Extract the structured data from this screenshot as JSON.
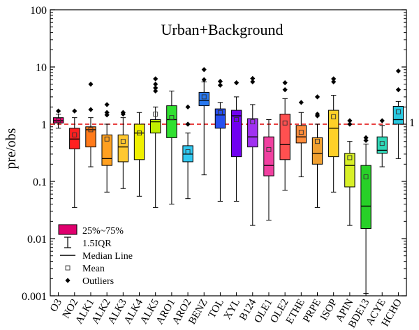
{
  "chart_data": {
    "type": "box",
    "title": "Urban+Background",
    "xlabel": "",
    "ylabel": "pre/obs",
    "y_scale": "log",
    "ylim": [
      0.001,
      100
    ],
    "y_ticks": [
      {
        "value": 0.001,
        "label": "0.001"
      },
      {
        "value": 0.01,
        "label": "0.01"
      },
      {
        "value": 0.1,
        "label": "0.1"
      },
      {
        "value": 1,
        "label": "1"
      },
      {
        "value": 10,
        "label": "10"
      },
      {
        "value": 100,
        "label": "100"
      }
    ],
    "reference_line": {
      "value": 1,
      "label": "1",
      "color": "#e00000",
      "style": "dashed"
    },
    "legend": {
      "placement": "bottom-left",
      "items": [
        {
          "kind": "box",
          "label": "25%~75%"
        },
        {
          "kind": "whisker",
          "label": "1.5IQR"
        },
        {
          "kind": "median",
          "label": "Median Line"
        },
        {
          "kind": "mean",
          "label": "Mean"
        },
        {
          "kind": "outlier",
          "label": "Outliers"
        }
      ]
    },
    "categories": [
      "O3",
      "NO2",
      "ALK1",
      "ALK2",
      "ALK3",
      "ALK4",
      "ALK5",
      "ARO1",
      "ARO2",
      "BENZ",
      "TOL",
      "XYL",
      "B124",
      "OLE1",
      "OLE2",
      "ETHE",
      "PRPE",
      "ISOP",
      "APIN",
      "BDE13",
      "ACYE",
      "HCHO"
    ],
    "boxes": [
      {
        "category": "O3",
        "color": "#e0006e",
        "q1": 1.05,
        "median": 1.15,
        "q3": 1.3,
        "whisker_low": 0.85,
        "whisker_high": 1.5,
        "mean": 1.16,
        "outliers": [
          1.7
        ]
      },
      {
        "category": "NO2",
        "color": "#ff2020",
        "q1": 0.37,
        "median": 0.55,
        "q3": 0.85,
        "whisker_low": 0.035,
        "whisker_high": 1.3,
        "mean": 0.65,
        "outliers": [
          1.7
        ]
      },
      {
        "category": "ALK1",
        "color": "#ff7a1a",
        "q1": 0.4,
        "median": 0.8,
        "q3": 0.9,
        "whisker_low": 0.18,
        "whisker_high": 1.3,
        "mean": 0.8,
        "outliers": [
          1.8,
          5.0
        ]
      },
      {
        "category": "ALK2",
        "color": "#ffa020",
        "q1": 0.19,
        "median": 0.25,
        "q3": 0.65,
        "whisker_low": 0.065,
        "whisker_high": 1.0,
        "mean": 0.55,
        "outliers": [
          1.45,
          1.6,
          2.2
        ]
      },
      {
        "category": "ALK3",
        "color": "#ffc830",
        "q1": 0.22,
        "median": 0.4,
        "q3": 0.65,
        "whisker_low": 0.075,
        "whisker_high": 1.3,
        "mean": 0.5,
        "outliers": [
          1.5,
          1.6
        ]
      },
      {
        "category": "ALK4",
        "color": "#f0f000",
        "q1": 0.24,
        "median": 0.7,
        "q3": 1.0,
        "whisker_low": 0.055,
        "whisker_high": 1.6,
        "mean": 0.7,
        "outliers": []
      },
      {
        "category": "ALK5",
        "color": "#c0ee00",
        "q1": 0.7,
        "median": 1.1,
        "q3": 1.2,
        "whisker_low": 0.035,
        "whisker_high": 2.0,
        "mean": 1.5,
        "outliers": [
          3.8,
          4.3,
          5.0,
          6.2
        ]
      },
      {
        "category": "ARO1",
        "color": "#30e030",
        "q1": 0.58,
        "median": 1.2,
        "q3": 2.1,
        "whisker_low": 0.04,
        "whisker_high": 3.8,
        "mean": 1.3,
        "outliers": []
      },
      {
        "category": "ARO2",
        "color": "#30c8f0",
        "q1": 0.22,
        "median": 0.3,
        "q3": 0.42,
        "whisker_low": 0.05,
        "whisker_high": 0.7,
        "mean": 0.33,
        "outliers": [
          1.0,
          2.0
        ]
      },
      {
        "category": "BENZ",
        "color": "#2878f0",
        "q1": 2.1,
        "median": 2.6,
        "q3": 3.6,
        "whisker_low": 0.13,
        "whisker_high": 5.5,
        "mean": 3.0,
        "outliers": [
          6.0,
          9.0
        ]
      },
      {
        "category": "TOL",
        "color": "#2850f0",
        "q1": 0.85,
        "median": 1.45,
        "q3": 1.85,
        "whisker_low": 0.045,
        "whisker_high": 2.4,
        "mean": 1.6,
        "outliers": [
          4.8,
          5.6
        ]
      },
      {
        "category": "XYL",
        "color": "#7000f0",
        "q1": 0.27,
        "median": 1.4,
        "q3": 1.75,
        "whisker_low": 0.045,
        "whisker_high": 3.0,
        "mean": 1.2,
        "outliers": [
          5.3
        ]
      },
      {
        "category": "B124",
        "color": "#a030f0",
        "q1": 0.4,
        "median": 0.6,
        "q3": 1.25,
        "whisker_low": 0.017,
        "whisker_high": 2.2,
        "mean": 1.1,
        "outliers": [
          5.5,
          6.3
        ]
      },
      {
        "category": "OLE1",
        "color": "#f040a0",
        "q1": 0.125,
        "median": 0.19,
        "q3": 0.6,
        "whisker_low": 0.021,
        "whisker_high": 1.2,
        "mean": 0.36,
        "outliers": []
      },
      {
        "category": "OLE2",
        "color": "#ff5050",
        "q1": 0.24,
        "median": 0.44,
        "q3": 1.5,
        "whisker_low": 0.07,
        "whisker_high": 2.8,
        "mean": 1.05,
        "outliers": [
          4.0,
          5.3
        ]
      },
      {
        "category": "ETHE",
        "color": "#ff8c3c",
        "q1": 0.47,
        "median": 0.6,
        "q3": 0.95,
        "whisker_low": 0.12,
        "whisker_high": 1.6,
        "mean": 0.72,
        "outliers": [
          2.4
        ]
      },
      {
        "category": "PRPE",
        "color": "#f0a030",
        "q1": 0.2,
        "median": 0.31,
        "q3": 0.58,
        "whisker_low": 0.035,
        "whisker_high": 1.0,
        "mean": 0.5,
        "outliers": [
          1.4,
          1.5,
          3.0
        ]
      },
      {
        "category": "ISOP",
        "color": "#ffd028",
        "q1": 0.27,
        "median": 0.85,
        "q3": 1.75,
        "whisker_low": 0.065,
        "whisker_high": 3.2,
        "mean": 1.35,
        "outliers": [
          5.5,
          6.2
        ]
      },
      {
        "category": "APIN",
        "color": "#d8f028",
        "q1": 0.08,
        "median": 0.19,
        "q3": 0.31,
        "whisker_low": 0.017,
        "whisker_high": 0.5,
        "mean": 0.26,
        "outliers": [
          1.0,
          1.15
        ]
      },
      {
        "category": "BDE13",
        "color": "#28d028",
        "q1": 0.015,
        "median": 0.037,
        "q3": 0.19,
        "whisker_low": 0.0011,
        "whisker_high": 0.45,
        "mean": 0.12,
        "outliers": [
          0.52,
          0.58
        ]
      },
      {
        "category": "ACYE",
        "color": "#30d8b8",
        "q1": 0.31,
        "median": 0.35,
        "q3": 0.6,
        "whisker_low": 0.18,
        "whisker_high": 0.95,
        "mean": 0.46,
        "outliers": [
          1.15
        ]
      },
      {
        "category": "HCHO",
        "color": "#28c8e0",
        "q1": 1.0,
        "median": 1.2,
        "q3": 2.05,
        "whisker_low": 0.25,
        "whisker_high": 2.5,
        "mean": 1.65,
        "outliers": [
          4.0,
          8.5
        ]
      }
    ]
  }
}
